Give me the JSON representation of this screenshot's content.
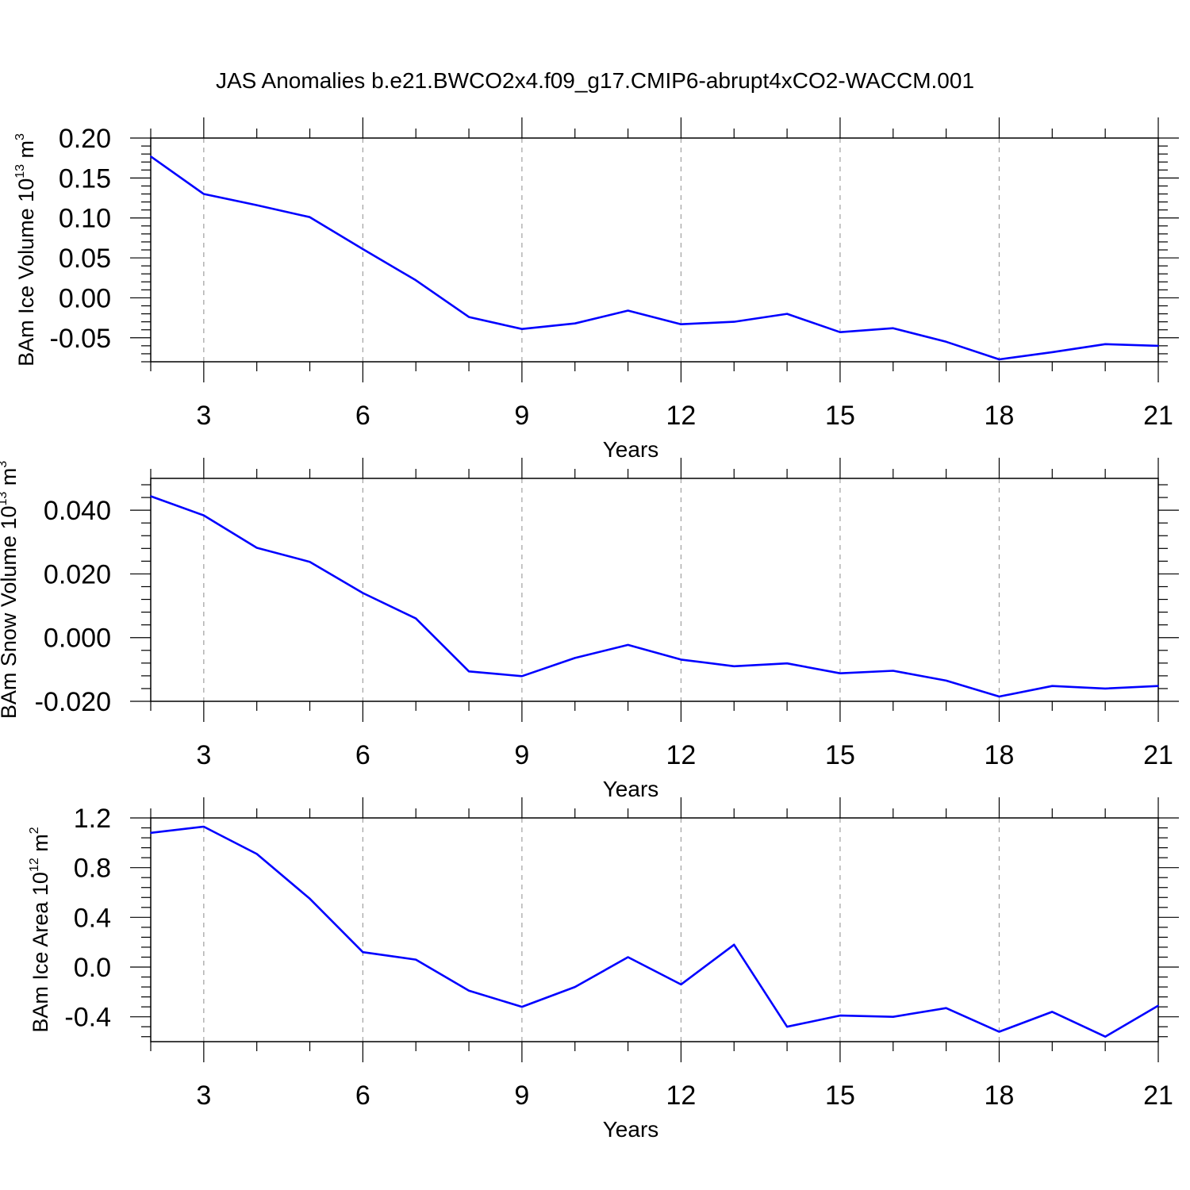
{
  "title": "JAS Anomalies b.e21.BWCO2x4.f09_g17.CMIP6-abrupt4xCO2-WACCM.001",
  "colors": {
    "line": "#0000ff",
    "axes": "#000000",
    "grid": "#a0a0a0"
  },
  "chart_data": [
    {
      "type": "line",
      "ylabel": {
        "prefix": "BAm Ice Volume 10",
        "exp": "13",
        "unit": " m",
        "unit_exp": "3"
      },
      "xlabel": "Years",
      "xlim": [
        2,
        21
      ],
      "ylim": [
        -0.08,
        0.2
      ],
      "x_ticks": [
        3,
        6,
        9,
        12,
        15,
        18,
        21
      ],
      "y_ticks": [
        0.2,
        0.15,
        0.1,
        0.05,
        0.0,
        -0.05
      ],
      "y_tick_labels": [
        "0.20",
        "0.15",
        "0.10",
        "0.05",
        "0.00",
        "-0.05"
      ],
      "grid": "vertical dashed at x ticks",
      "x": [
        2,
        3,
        4,
        5,
        6,
        7,
        8,
        9,
        10,
        11,
        12,
        13,
        14,
        15,
        16,
        17,
        18,
        19,
        20,
        21
      ],
      "series": [
        {
          "values": [
            0.177,
            0.13,
            0.116,
            0.101,
            0.061,
            0.022,
            -0.024,
            -0.039,
            -0.032,
            -0.016,
            -0.033,
            -0.03,
            -0.02,
            -0.043,
            -0.038,
            -0.055,
            -0.077,
            -0.068,
            -0.058,
            -0.06
          ]
        }
      ]
    },
    {
      "type": "line",
      "ylabel": {
        "prefix": "BAm Snow Volume 10",
        "exp": "13",
        "unit": " m",
        "unit_exp": "3"
      },
      "xlabel": "Years",
      "xlim": [
        2,
        21
      ],
      "ylim": [
        -0.02,
        0.05
      ],
      "x_ticks": [
        3,
        6,
        9,
        12,
        15,
        18,
        21
      ],
      "y_ticks": [
        0.04,
        0.02,
        0.0,
        -0.02
      ],
      "y_tick_labels": [
        "0.040",
        "0.020",
        "0.000",
        "-0.020"
      ],
      "grid": "vertical dashed at x ticks",
      "x": [
        2,
        3,
        4,
        5,
        6,
        7,
        8,
        9,
        10,
        11,
        12,
        13,
        14,
        15,
        16,
        17,
        18,
        19,
        20,
        21
      ],
      "series": [
        {
          "values": [
            0.0444,
            0.0384,
            0.0282,
            0.0238,
            0.014,
            0.006,
            -0.0106,
            -0.0121,
            -0.0064,
            -0.0023,
            -0.0069,
            -0.009,
            -0.0081,
            -0.0112,
            -0.0104,
            -0.0135,
            -0.0185,
            -0.0152,
            -0.016,
            -0.0152
          ]
        }
      ]
    },
    {
      "type": "line",
      "ylabel": {
        "prefix": "BAm Ice Area 10",
        "exp": "12",
        "unit": " m",
        "unit_exp": "2"
      },
      "xlabel": "Years",
      "xlim": [
        2,
        21
      ],
      "ylim": [
        -0.6,
        1.2
      ],
      "x_ticks": [
        3,
        6,
        9,
        12,
        15,
        18,
        21
      ],
      "y_ticks": [
        1.2,
        0.8,
        0.4,
        0.0,
        -0.4
      ],
      "y_tick_labels": [
        "1.2",
        "0.8",
        "0.4",
        "0.0",
        "-0.4"
      ],
      "grid": "vertical dashed at x ticks",
      "x": [
        2,
        3,
        4,
        5,
        6,
        7,
        8,
        9,
        10,
        11,
        12,
        13,
        14,
        15,
        16,
        17,
        18,
        19,
        20,
        21
      ],
      "series": [
        {
          "values": [
            1.08,
            1.13,
            0.91,
            0.55,
            0.12,
            0.06,
            -0.19,
            -0.32,
            -0.16,
            0.08,
            -0.14,
            0.18,
            -0.48,
            -0.39,
            -0.4,
            -0.33,
            -0.52,
            -0.36,
            -0.56,
            -0.31
          ]
        }
      ]
    }
  ]
}
